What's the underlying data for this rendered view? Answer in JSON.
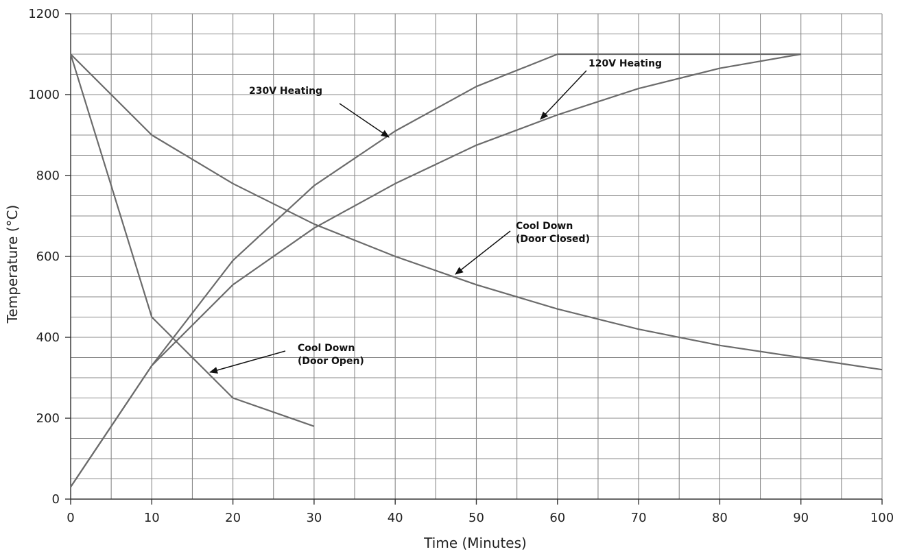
{
  "chart_data": {
    "type": "line",
    "title": "",
    "xlabel": "Time (Minutes)",
    "ylabel": "Temperature (°C)",
    "xlim": [
      0,
      100
    ],
    "ylim": [
      0,
      1200
    ],
    "x_ticks": [
      0,
      10,
      20,
      30,
      40,
      50,
      60,
      70,
      80,
      90,
      100
    ],
    "y_ticks": [
      0,
      200,
      400,
      600,
      800,
      1000,
      1200
    ],
    "x_tick_labels": [
      "0",
      "10",
      "20",
      "30",
      "40",
      "50",
      "60",
      "70",
      "80",
      "90",
      "100"
    ],
    "y_tick_labels": [
      "0",
      "200",
      "400",
      "600",
      "800",
      "1000",
      "1200"
    ],
    "grid": true,
    "minor_grid": true,
    "x_minor_step": 5,
    "y_minor_step": 50,
    "series": [
      {
        "x": [
          0,
          10,
          20,
          30,
          40,
          50,
          60,
          90
        ],
        "y": [
          30,
          330,
          590,
          775,
          910,
          1020,
          1100,
          1100
        ]
      },
      {
        "x": [
          0,
          10,
          20,
          30,
          40,
          50,
          60,
          70,
          80,
          90
        ],
        "y": [
          30,
          330,
          530,
          670,
          780,
          875,
          950,
          1015,
          1065,
          1100
        ]
      },
      {
        "x": [
          0,
          10,
          20,
          30,
          40,
          50,
          60,
          70,
          80,
          90,
          100
        ],
        "y": [
          1100,
          900,
          780,
          680,
          600,
          530,
          470,
          420,
          380,
          350,
          320
        ]
      },
      {
        "x": [
          0,
          10,
          20,
          30
        ],
        "y": [
          1100,
          450,
          250,
          180
        ]
      }
    ],
    "annotations": [
      {
        "lines": [
          "230V Heating"
        ]
      },
      {
        "lines": [
          "120V Heating"
        ]
      },
      {
        "lines": [
          "Cool Down",
          "(Door Closed)"
        ]
      },
      {
        "lines": [
          "Cool Down",
          "(Door Open)"
        ]
      }
    ],
    "colors": {
      "line": "#6b6b6b",
      "grid": "#888888",
      "text": "#222222",
      "arrow": "#111111"
    }
  }
}
